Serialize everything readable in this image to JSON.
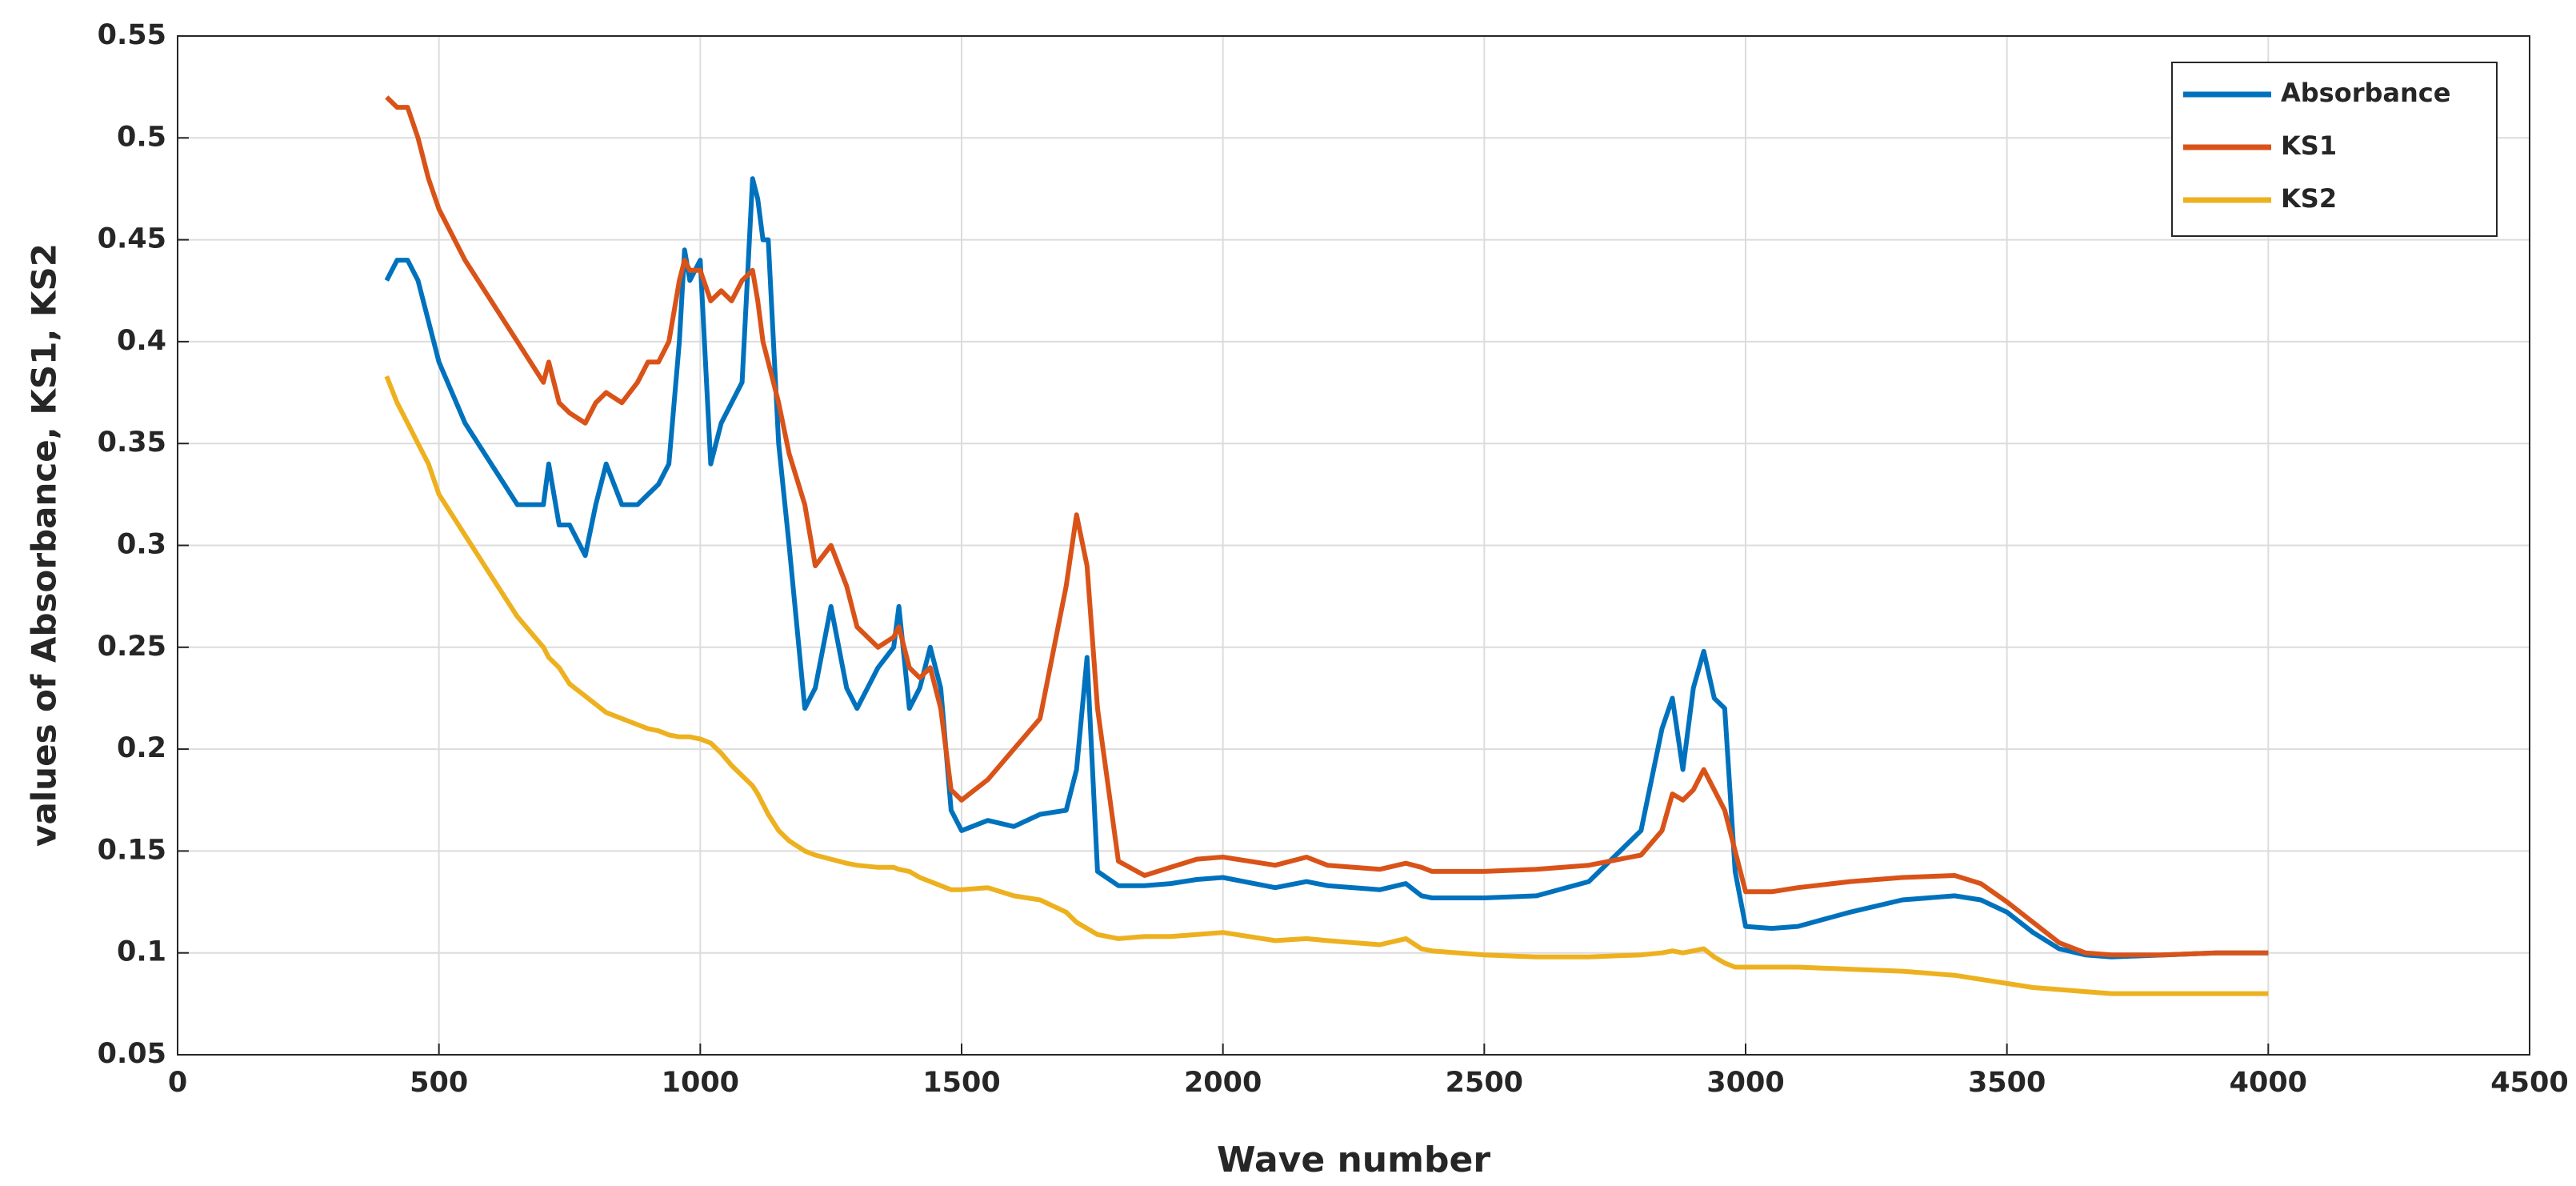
{
  "chart_data": {
    "type": "line",
    "xlabel": "Wave number",
    "ylabel": "values of Absorbance, KS1, KS2",
    "xlim": [
      0,
      4500
    ],
    "xticks": [
      0,
      500,
      1000,
      1500,
      2000,
      2500,
      3000,
      3500,
      4000,
      4500
    ],
    "ylim": [
      0.05,
      0.55
    ],
    "yticks": [
      0.05,
      0.1,
      0.15,
      0.2,
      0.25,
      0.3,
      0.35,
      0.4,
      0.45,
      0.5,
      0.55
    ],
    "grid": true,
    "legend": "upper right",
    "x": [
      400,
      420,
      440,
      460,
      480,
      500,
      550,
      600,
      650,
      700,
      710,
      730,
      750,
      780,
      800,
      820,
      850,
      880,
      900,
      920,
      940,
      960,
      970,
      980,
      1000,
      1020,
      1040,
      1060,
      1080,
      1100,
      1110,
      1120,
      1130,
      1150,
      1170,
      1200,
      1220,
      1250,
      1280,
      1300,
      1340,
      1370,
      1380,
      1400,
      1420,
      1440,
      1460,
      1480,
      1500,
      1550,
      1600,
      1650,
      1700,
      1720,
      1740,
      1760,
      1800,
      1850,
      1900,
      1950,
      2000,
      2100,
      2160,
      2200,
      2300,
      2350,
      2380,
      2400,
      2500,
      2600,
      2700,
      2800,
      2840,
      2860,
      2880,
      2900,
      2920,
      2940,
      2960,
      2980,
      3000,
      3050,
      3100,
      3200,
      3300,
      3400,
      3450,
      3500,
      3550,
      3600,
      3650,
      3700,
      3800,
      3900,
      4000
    ],
    "series": [
      {
        "name": "Absorbance",
        "color": "#0072BD",
        "values": [
          0.43,
          0.44,
          0.44,
          0.43,
          0.41,
          0.39,
          0.36,
          0.34,
          0.32,
          0.32,
          0.34,
          0.31,
          0.31,
          0.295,
          0.32,
          0.34,
          0.32,
          0.32,
          0.325,
          0.33,
          0.34,
          0.4,
          0.445,
          0.43,
          0.44,
          0.34,
          0.36,
          0.37,
          0.38,
          0.48,
          0.47,
          0.45,
          0.45,
          0.35,
          0.3,
          0.22,
          0.23,
          0.27,
          0.23,
          0.22,
          0.24,
          0.25,
          0.27,
          0.22,
          0.23,
          0.25,
          0.23,
          0.17,
          0.16,
          0.165,
          0.162,
          0.168,
          0.17,
          0.19,
          0.245,
          0.14,
          0.133,
          0.133,
          0.134,
          0.136,
          0.137,
          0.132,
          0.135,
          0.133,
          0.131,
          0.134,
          0.128,
          0.127,
          0.127,
          0.128,
          0.135,
          0.16,
          0.21,
          0.225,
          0.19,
          0.23,
          0.248,
          0.225,
          0.22,
          0.14,
          0.113,
          0.112,
          0.113,
          0.12,
          0.126,
          0.128,
          0.126,
          0.12,
          0.11,
          0.102,
          0.099,
          0.098,
          0.099,
          0.1,
          0.1
        ]
      },
      {
        "name": "KS1",
        "color": "#D95319",
        "values": [
          0.52,
          0.515,
          0.515,
          0.5,
          0.48,
          0.465,
          0.44,
          0.42,
          0.4,
          0.38,
          0.39,
          0.37,
          0.365,
          0.36,
          0.37,
          0.375,
          0.37,
          0.38,
          0.39,
          0.39,
          0.4,
          0.43,
          0.44,
          0.435,
          0.435,
          0.42,
          0.425,
          0.42,
          0.43,
          0.435,
          0.42,
          0.4,
          0.39,
          0.37,
          0.345,
          0.32,
          0.29,
          0.3,
          0.28,
          0.26,
          0.25,
          0.255,
          0.26,
          0.24,
          0.235,
          0.24,
          0.22,
          0.18,
          0.175,
          0.185,
          0.2,
          0.215,
          0.28,
          0.315,
          0.29,
          0.22,
          0.145,
          0.138,
          0.142,
          0.146,
          0.147,
          0.143,
          0.147,
          0.143,
          0.141,
          0.144,
          0.142,
          0.14,
          0.14,
          0.141,
          0.143,
          0.148,
          0.16,
          0.178,
          0.175,
          0.18,
          0.19,
          0.18,
          0.17,
          0.15,
          0.13,
          0.13,
          0.132,
          0.135,
          0.137,
          0.138,
          0.134,
          0.125,
          0.115,
          0.105,
          0.1,
          0.099,
          0.099,
          0.1,
          0.1
        ]
      },
      {
        "name": "KS2",
        "color": "#EDB120",
        "values": [
          0.383,
          0.37,
          0.36,
          0.35,
          0.34,
          0.325,
          0.305,
          0.285,
          0.265,
          0.25,
          0.245,
          0.24,
          0.232,
          0.226,
          0.222,
          0.218,
          0.215,
          0.212,
          0.21,
          0.209,
          0.207,
          0.206,
          0.206,
          0.206,
          0.205,
          0.203,
          0.198,
          0.192,
          0.187,
          0.182,
          0.178,
          0.173,
          0.168,
          0.16,
          0.155,
          0.15,
          0.148,
          0.146,
          0.144,
          0.143,
          0.142,
          0.142,
          0.141,
          0.14,
          0.137,
          0.135,
          0.133,
          0.131,
          0.131,
          0.132,
          0.128,
          0.126,
          0.12,
          0.115,
          0.112,
          0.109,
          0.107,
          0.108,
          0.108,
          0.109,
          0.11,
          0.106,
          0.107,
          0.106,
          0.104,
          0.107,
          0.102,
          0.101,
          0.099,
          0.098,
          0.098,
          0.099,
          0.1,
          0.101,
          0.1,
          0.101,
          0.102,
          0.098,
          0.095,
          0.093,
          0.093,
          0.093,
          0.093,
          0.092,
          0.091,
          0.089,
          0.087,
          0.085,
          0.083,
          0.082,
          0.081,
          0.08,
          0.08,
          0.08,
          0.08
        ]
      }
    ]
  }
}
